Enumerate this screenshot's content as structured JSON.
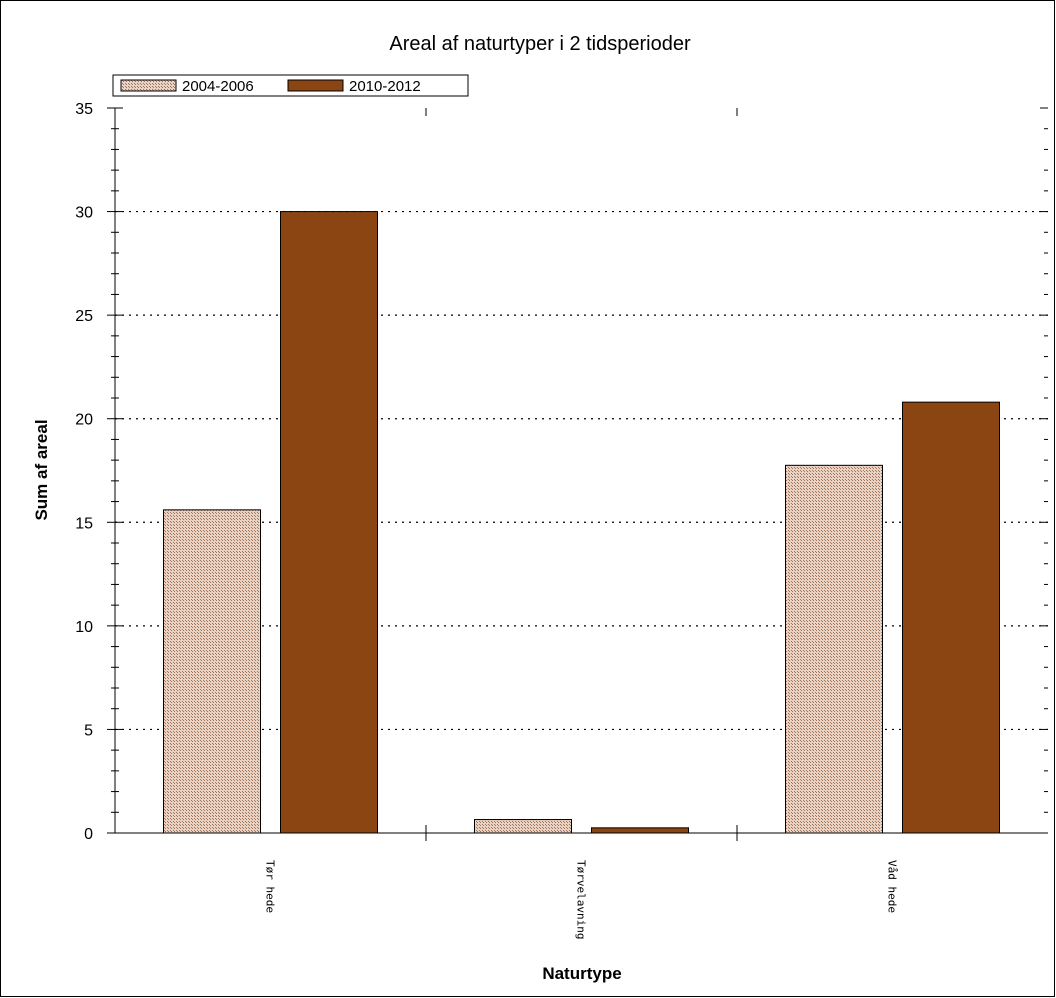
{
  "chart_data": {
    "type": "bar",
    "title": "Areal af naturtyper i 2 tidsperioder",
    "xlabel": "Naturtype",
    "ylabel": "Sum af areal",
    "categories": [
      "Tør hede",
      "Tørvelavning",
      "Våd hede"
    ],
    "series": [
      {
        "name": "2004-2006",
        "values": [
          15.6,
          0.65,
          17.75
        ],
        "color": "#d9b8a4"
      },
      {
        "name": "2010-2012",
        "values": [
          30.0,
          0.25,
          20.8
        ],
        "color": "#8b4513"
      }
    ],
    "ylim": [
      0,
      35
    ],
    "yticks": [
      0,
      5,
      10,
      15,
      20,
      25,
      30,
      35
    ],
    "grid": "dotted-horizontal",
    "legend_position": "top-left"
  }
}
